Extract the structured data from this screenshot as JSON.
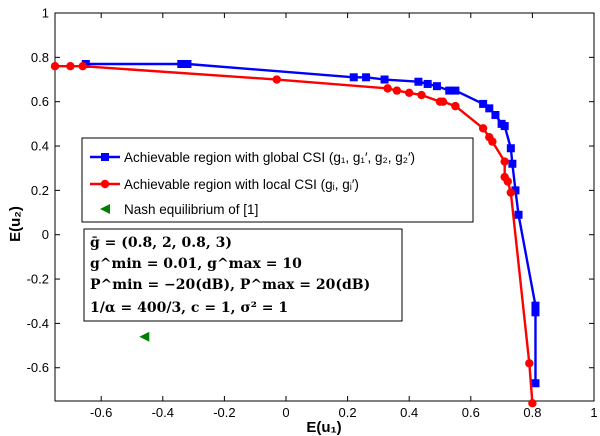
{
  "chart_data": {
    "type": "line",
    "xlabel": "E(u₁)",
    "ylabel": "E(u₂)",
    "xlim": [
      -0.75,
      1.0
    ],
    "ylim": [
      -0.75,
      1.0
    ],
    "x_ticks": [
      "-0.6",
      "-0.4",
      "-0.2",
      "0",
      "0.2",
      "0.4",
      "0.6",
      "0.8",
      "1"
    ],
    "y_ticks": [
      "-0.6",
      "-0.4",
      "-0.2",
      "0",
      "0.2",
      "0.4",
      "0.6",
      "0.8",
      "1"
    ],
    "grid": false,
    "legend_position": "center-left",
    "series": [
      {
        "name": "Achievable region with global CSI (g₁, g₁′, g₂, g₂′)",
        "color": "#0000ff",
        "marker": "square",
        "points": [
          [
            -0.65,
            0.77
          ],
          [
            -0.34,
            0.77
          ],
          [
            -0.32,
            0.77
          ],
          [
            0.22,
            0.71
          ],
          [
            0.26,
            0.71
          ],
          [
            0.32,
            0.7
          ],
          [
            0.43,
            0.69
          ],
          [
            0.46,
            0.68
          ],
          [
            0.49,
            0.67
          ],
          [
            0.53,
            0.65
          ],
          [
            0.55,
            0.65
          ],
          [
            0.64,
            0.59
          ],
          [
            0.66,
            0.57
          ],
          [
            0.68,
            0.54
          ],
          [
            0.7,
            0.5
          ],
          [
            0.71,
            0.49
          ],
          [
            0.73,
            0.39
          ],
          [
            0.735,
            0.32
          ],
          [
            0.745,
            0.2
          ],
          [
            0.755,
            0.09
          ],
          [
            0.81,
            -0.32
          ],
          [
            0.81,
            -0.35
          ],
          [
            0.81,
            -0.67
          ]
        ]
      },
      {
        "name": "Achievable region with local CSI (gᵢ, gᵢ′)",
        "color": "#ff0000",
        "marker": "circle",
        "points": [
          [
            -0.75,
            0.76
          ],
          [
            -0.7,
            0.76
          ],
          [
            -0.66,
            0.76
          ],
          [
            -0.03,
            0.7
          ],
          [
            0.33,
            0.66
          ],
          [
            0.36,
            0.65
          ],
          [
            0.4,
            0.64
          ],
          [
            0.44,
            0.63
          ],
          [
            0.5,
            0.6
          ],
          [
            0.51,
            0.6
          ],
          [
            0.55,
            0.58
          ],
          [
            0.64,
            0.48
          ],
          [
            0.66,
            0.44
          ],
          [
            0.67,
            0.42
          ],
          [
            0.71,
            0.33
          ],
          [
            0.71,
            0.26
          ],
          [
            0.72,
            0.24
          ],
          [
            0.73,
            0.19
          ],
          [
            0.79,
            -0.58
          ],
          [
            0.8,
            -0.76
          ]
        ]
      },
      {
        "name": "Nash equilibrium of [1]",
        "color": "#008000",
        "marker": "triangle-left",
        "points": [
          [
            -0.46,
            -0.46
          ]
        ]
      }
    ],
    "annotation_lines": [
      "ḡ = (0.8, 2, 0.8, 3)",
      "g^min = 0.01,  g^max = 10",
      "P^min = −20(dB),  P^max = 20(dB)",
      "1/α = 400/3,  c = 1,  σ² = 1"
    ]
  }
}
